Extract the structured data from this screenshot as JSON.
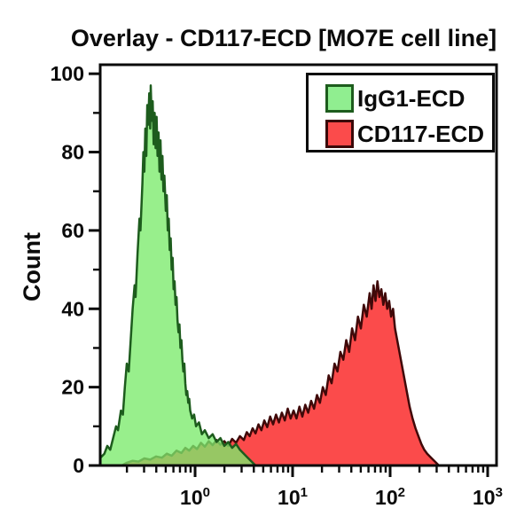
{
  "title": "Overlay - CD117-ECD [MO7E cell line]",
  "legend": {
    "entries": [
      {
        "label": "IgG1-ECD",
        "fill": "#90EE90",
        "border": "#1d5c1d"
      },
      {
        "label": "CD117-ECD",
        "fill": "#FB4B4B",
        "border": "#3a0808"
      }
    ]
  },
  "chart_data": {
    "type": "area",
    "subtype": "flow-cytometry-histogram-overlay",
    "title": "Overlay - CD117-ECD [MO7E cell line]",
    "xlabel": "",
    "ylabel": "Count",
    "grid": false,
    "legend_position": "top-right-inside",
    "x_axis": {
      "scale": "log10",
      "range_log": [
        -0.973,
        3.091
      ],
      "major_ticks": [
        {
          "log": 0,
          "base": "10",
          "exp": "0"
        },
        {
          "log": 1,
          "base": "10",
          "exp": "1"
        },
        {
          "log": 2,
          "base": "10",
          "exp": "2"
        },
        {
          "log": 3,
          "base": "10",
          "exp": "3"
        }
      ],
      "minor_tick_logs": [
        -0.699,
        -0.523,
        -0.398,
        -0.301,
        -0.222,
        -0.155,
        -0.097,
        -0.046,
        0.301,
        0.477,
        0.602,
        0.699,
        0.778,
        0.845,
        0.903,
        0.954,
        1.301,
        1.477,
        1.602,
        1.699,
        1.778,
        1.845,
        1.903,
        1.954,
        2.301,
        2.477,
        2.602,
        2.699,
        2.778,
        2.845,
        2.903,
        2.954
      ]
    },
    "y_axis": {
      "label": "Count",
      "range": [
        0,
        102.3
      ],
      "major_ticks": [
        {
          "value": 0,
          "label": "0"
        },
        {
          "value": 20,
          "label": "20"
        },
        {
          "value": 40,
          "label": "40"
        },
        {
          "value": 60,
          "label": "60"
        },
        {
          "value": 80,
          "label": "80"
        },
        {
          "value": 100,
          "label": "100"
        }
      ],
      "minor_ticks": [
        10,
        30,
        50,
        70,
        90
      ]
    },
    "series": [
      {
        "name": "CD117-ECD",
        "fill": "#FB4B4B",
        "fill_opacity": 1,
        "stroke": "#400909",
        "points": [
          [
            -0.75,
            0
          ],
          [
            -0.7,
            0.7
          ],
          [
            -0.64,
            1.2
          ],
          [
            -0.58,
            1
          ],
          [
            -0.52,
            1.8
          ],
          [
            -0.46,
            1.5
          ],
          [
            -0.4,
            2.3
          ],
          [
            -0.34,
            2
          ],
          [
            -0.29,
            3
          ],
          [
            -0.24,
            2.5
          ],
          [
            -0.19,
            3.8
          ],
          [
            -0.14,
            3.2
          ],
          [
            -0.1,
            4.5
          ],
          [
            -0.06,
            3.8
          ],
          [
            -0.02,
            5
          ],
          [
            0.02,
            4.2
          ],
          [
            0.06,
            5.8
          ],
          [
            0.1,
            4.8
          ],
          [
            0.14,
            6.2
          ],
          [
            0.18,
            5.2
          ],
          [
            0.22,
            6.5
          ],
          [
            0.26,
            5.3
          ],
          [
            0.3,
            6.2
          ],
          [
            0.34,
            5
          ],
          [
            0.38,
            6.8
          ],
          [
            0.42,
            5.8
          ],
          [
            0.46,
            7.5
          ],
          [
            0.5,
            6.5
          ],
          [
            0.53,
            8.5
          ],
          [
            0.56,
            7.5
          ],
          [
            0.59,
            9.5
          ],
          [
            0.62,
            8.2
          ],
          [
            0.65,
            10.5
          ],
          [
            0.68,
            9
          ],
          [
            0.71,
            11.5
          ],
          [
            0.74,
            9.8
          ],
          [
            0.77,
            12.5
          ],
          [
            0.8,
            10.5
          ],
          [
            0.83,
            13
          ],
          [
            0.86,
            11
          ],
          [
            0.89,
            13.5
          ],
          [
            0.92,
            11.5
          ],
          [
            0.95,
            14.5
          ],
          [
            0.98,
            12
          ],
          [
            1.01,
            14
          ],
          [
            1.04,
            12
          ],
          [
            1.07,
            15
          ],
          [
            1.1,
            12.5
          ],
          [
            1.13,
            15.5
          ],
          [
            1.16,
            13.5
          ],
          [
            1.19,
            16.5
          ],
          [
            1.22,
            14.5
          ],
          [
            1.25,
            18
          ],
          [
            1.28,
            16
          ],
          [
            1.31,
            20
          ],
          [
            1.34,
            18
          ],
          [
            1.37,
            23
          ],
          [
            1.4,
            21
          ],
          [
            1.43,
            26
          ],
          [
            1.46,
            24
          ],
          [
            1.49,
            29
          ],
          [
            1.52,
            27
          ],
          [
            1.55,
            32
          ],
          [
            1.58,
            29
          ],
          [
            1.61,
            35
          ],
          [
            1.64,
            32
          ],
          [
            1.67,
            38
          ],
          [
            1.7,
            35
          ],
          [
            1.73,
            41
          ],
          [
            1.76,
            38
          ],
          [
            1.79,
            44
          ],
          [
            1.81,
            40
          ],
          [
            1.83,
            46
          ],
          [
            1.85,
            42
          ],
          [
            1.87,
            47
          ],
          [
            1.89,
            43
          ],
          [
            1.91,
            45
          ],
          [
            1.93,
            41
          ],
          [
            1.95,
            44
          ],
          [
            1.97,
            40
          ],
          [
            1.99,
            42
          ],
          [
            2.01,
            38
          ],
          [
            2.03,
            40
          ],
          [
            2.05,
            35
          ],
          [
            2.08,
            31
          ],
          [
            2.11,
            27
          ],
          [
            2.14,
            23
          ],
          [
            2.17,
            19
          ],
          [
            2.2,
            15
          ],
          [
            2.23,
            12
          ],
          [
            2.26,
            9.5
          ],
          [
            2.29,
            7.5
          ],
          [
            2.32,
            5.5
          ],
          [
            2.35,
            4
          ],
          [
            2.38,
            3
          ],
          [
            2.42,
            2
          ],
          [
            2.46,
            1
          ],
          [
            2.5,
            0
          ]
        ]
      },
      {
        "name": "IgG1-ECD",
        "fill": "#7BEA6C",
        "fill_opacity": 0.78,
        "stroke": "#1d5c1d",
        "points": [
          [
            -0.97,
            2
          ],
          [
            -0.93,
            3
          ],
          [
            -0.9,
            5
          ],
          [
            -0.87,
            4
          ],
          [
            -0.84,
            7
          ],
          [
            -0.81,
            10
          ],
          [
            -0.79,
            9
          ],
          [
            -0.76,
            14
          ],
          [
            -0.74,
            13
          ],
          [
            -0.72,
            20
          ],
          [
            -0.7,
            26
          ],
          [
            -0.68,
            24
          ],
          [
            -0.66,
            32
          ],
          [
            -0.64,
            40
          ],
          [
            -0.62,
            46
          ],
          [
            -0.61,
            43
          ],
          [
            -0.59,
            54
          ],
          [
            -0.57,
            63
          ],
          [
            -0.56,
            60
          ],
          [
            -0.54,
            72
          ],
          [
            -0.53,
            80
          ],
          [
            -0.52,
            75
          ],
          [
            -0.51,
            86
          ],
          [
            -0.5,
            79
          ],
          [
            -0.49,
            92
          ],
          [
            -0.48,
            87
          ],
          [
            -0.47,
            95
          ],
          [
            -0.46,
            86
          ],
          [
            -0.455,
            97
          ],
          [
            -0.445,
            88
          ],
          [
            -0.435,
            93
          ],
          [
            -0.425,
            82
          ],
          [
            -0.415,
            90
          ],
          [
            -0.405,
            81
          ],
          [
            -0.395,
            89
          ],
          [
            -0.385,
            79
          ],
          [
            -0.375,
            85
          ],
          [
            -0.365,
            75
          ],
          [
            -0.355,
            83
          ],
          [
            -0.345,
            73
          ],
          [
            -0.335,
            79
          ],
          [
            -0.325,
            70
          ],
          [
            -0.315,
            74
          ],
          [
            -0.3,
            65
          ],
          [
            -0.29,
            69
          ],
          [
            -0.28,
            60
          ],
          [
            -0.27,
            63
          ],
          [
            -0.26,
            55
          ],
          [
            -0.25,
            58
          ],
          [
            -0.24,
            50
          ],
          [
            -0.23,
            53
          ],
          [
            -0.22,
            45
          ],
          [
            -0.21,
            47
          ],
          [
            -0.2,
            41
          ],
          [
            -0.19,
            43
          ],
          [
            -0.18,
            37
          ],
          [
            -0.17,
            34
          ],
          [
            -0.16,
            36
          ],
          [
            -0.15,
            30
          ],
          [
            -0.14,
            32
          ],
          [
            -0.13,
            27
          ],
          [
            -0.12,
            24
          ],
          [
            -0.11,
            26
          ],
          [
            -0.1,
            21
          ],
          [
            -0.09,
            18
          ],
          [
            -0.08,
            19
          ],
          [
            -0.07,
            16
          ],
          [
            -0.06,
            17
          ],
          [
            -0.05,
            14
          ],
          [
            -0.03,
            12
          ],
          [
            -0.01,
            13
          ],
          [
            0.01,
            10
          ],
          [
            0.04,
            11
          ],
          [
            0.07,
            8
          ],
          [
            0.1,
            9
          ],
          [
            0.14,
            7
          ],
          [
            0.18,
            8
          ],
          [
            0.22,
            6
          ],
          [
            0.26,
            7
          ],
          [
            0.3,
            5
          ],
          [
            0.34,
            6
          ],
          [
            0.38,
            4.5
          ],
          [
            0.42,
            5.5
          ],
          [
            0.46,
            4
          ],
          [
            0.5,
            3
          ],
          [
            0.54,
            2
          ],
          [
            0.58,
            1
          ],
          [
            0.62,
            0
          ]
        ]
      }
    ]
  }
}
